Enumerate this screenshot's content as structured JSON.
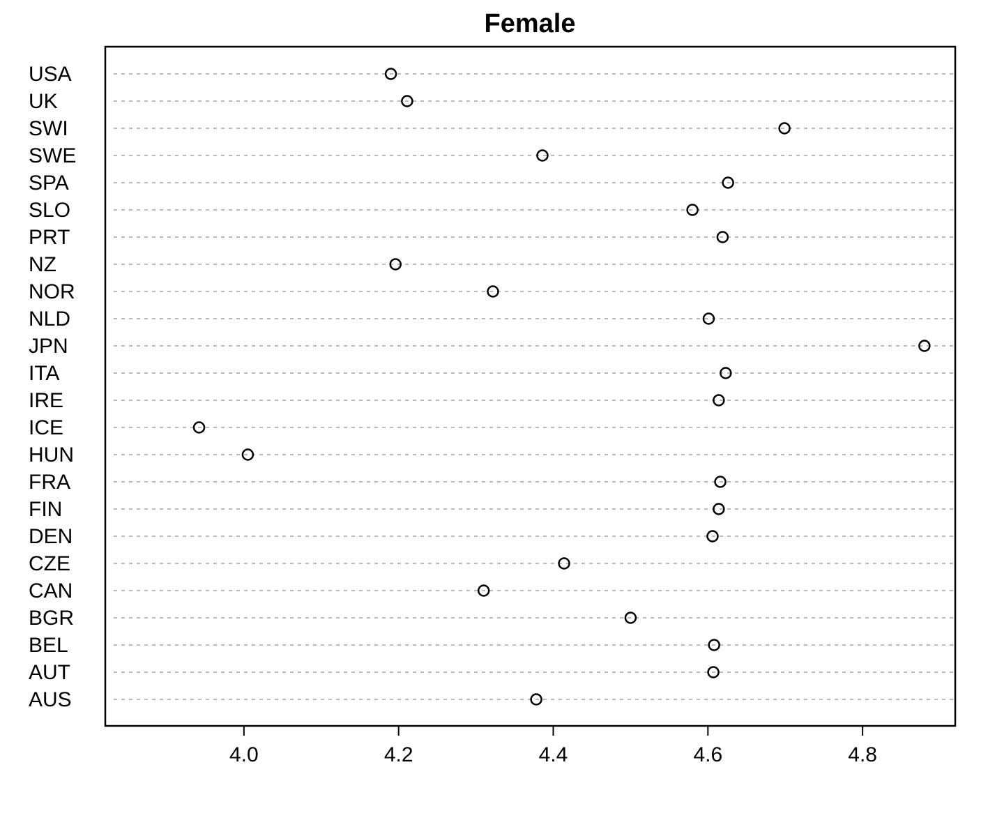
{
  "chart_data": {
    "type": "dot",
    "title": "Female",
    "categories": [
      "USA",
      "UK",
      "SWI",
      "SWE",
      "SPA",
      "SLO",
      "PRT",
      "NZ",
      "NOR",
      "NLD",
      "JPN",
      "ITA",
      "IRE",
      "ICE",
      "HUN",
      "FRA",
      "FIN",
      "DEN",
      "CZE",
      "CAN",
      "BGR",
      "BEL",
      "AUT",
      "AUS"
    ],
    "values": [
      4.19,
      4.211,
      4.699,
      4.386,
      4.626,
      4.58,
      4.619,
      4.196,
      4.322,
      4.601,
      4.88,
      4.623,
      4.614,
      3.942,
      4.005,
      4.616,
      4.614,
      4.606,
      4.414,
      4.31,
      4.5,
      4.608,
      4.607,
      4.378
    ],
    "color": "#000000",
    "xlim": [
      3.8207,
      4.9198
    ],
    "xticks": [
      {
        "value": 4,
        "label": "4.0"
      },
      4.2,
      4.4,
      4.6,
      4.8
    ],
    "grid": true
  }
}
